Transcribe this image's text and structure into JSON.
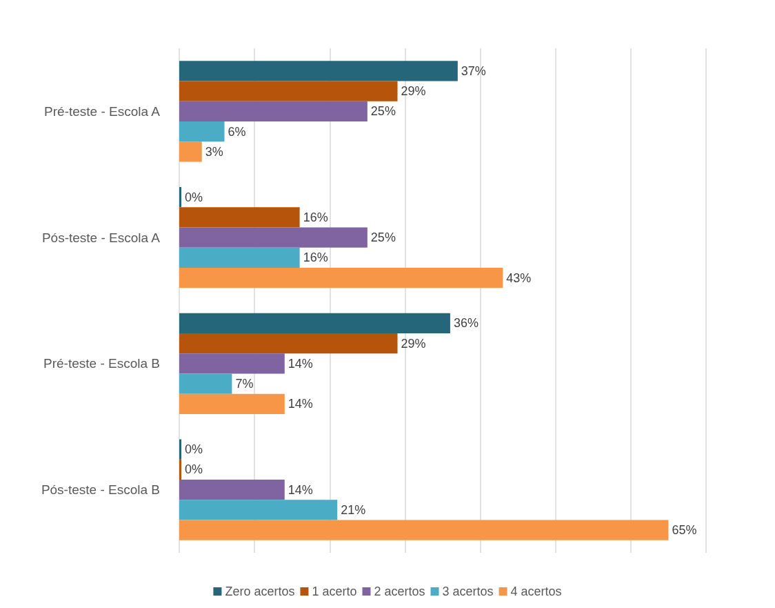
{
  "chart_data": {
    "type": "bar",
    "orientation": "horizontal",
    "categories": [
      "Pré-teste - Escola A",
      "Pós-teste - Escola A",
      "Pré-teste - Escola B",
      "Pós-teste - Escola B"
    ],
    "series": [
      {
        "name": "Zero acertos",
        "color": "#26667a",
        "values": [
          37,
          0,
          36,
          0
        ],
        "value_labels": [
          "37%",
          "0%",
          "36%",
          "0%"
        ]
      },
      {
        "name": "1 acerto",
        "color": "#b5540a",
        "values": [
          29,
          16,
          29,
          0
        ],
        "value_labels": [
          "29%",
          "16%",
          "29%",
          "0%"
        ]
      },
      {
        "name": "2 acertos",
        "color": "#8064a2",
        "values": [
          25,
          25,
          14,
          14
        ],
        "value_labels": [
          "25%",
          "25%",
          "14%",
          "14%"
        ]
      },
      {
        "name": "3 acertos",
        "color": "#4bacc6",
        "values": [
          6,
          16,
          7,
          21
        ],
        "value_labels": [
          "6%",
          "16%",
          "7%",
          "21%"
        ]
      },
      {
        "name": "4 acertos",
        "color": "#f79646",
        "values": [
          3,
          43,
          14,
          65
        ],
        "value_labels": [
          "3%",
          "43%",
          "14%",
          "65%"
        ]
      }
    ],
    "xlim": [
      0,
      70
    ],
    "xticks": [
      {
        "value": 0,
        "label": null
      },
      {
        "value": 10,
        "label": null
      },
      {
        "value": 20,
        "label": null
      },
      {
        "value": 30,
        "label": null
      },
      {
        "value": 40,
        "label": null
      },
      {
        "value": 50,
        "label": null
      },
      {
        "value": 60,
        "label": null
      },
      {
        "value": 70,
        "label": null
      }
    ],
    "tick_labels": "y",
    "grid": "x",
    "legend": "bottom"
  }
}
